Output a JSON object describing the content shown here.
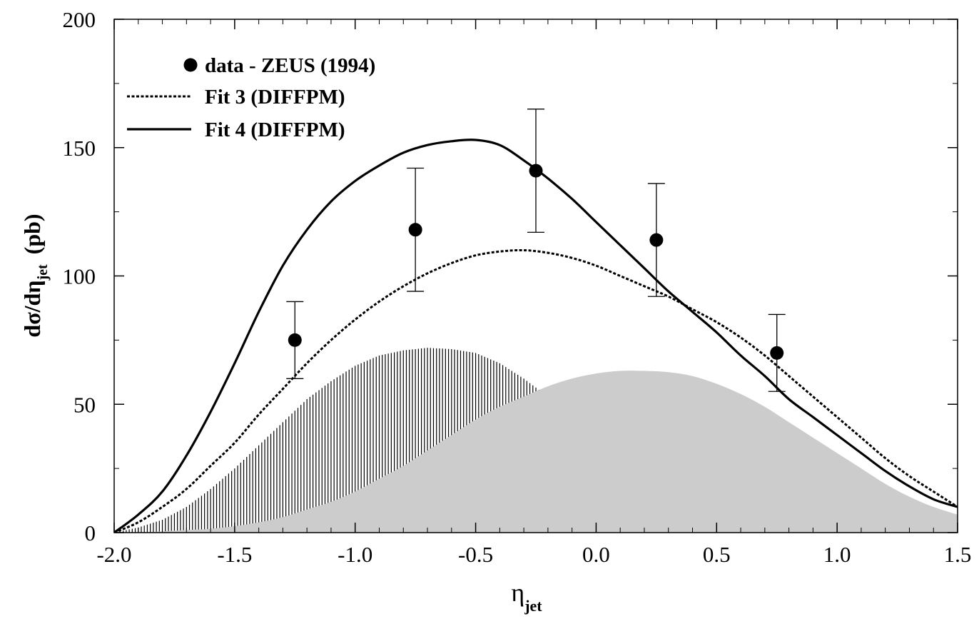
{
  "chart_data": {
    "type": "line",
    "title": "",
    "xlabel": {
      "main": "η",
      "sub": "jet"
    },
    "ylabel": {
      "main": "dσ/dη",
      "sub": "jet",
      "unit": "(pb)"
    },
    "xlim": [
      -2.0,
      1.5
    ],
    "ylim": [
      0,
      200
    ],
    "x_ticks": [
      -2.0,
      -1.5,
      -1.0,
      -0.5,
      0.0,
      0.5,
      1.0,
      1.5
    ],
    "x_tick_labels": [
      "-2.0",
      "-1.5",
      "-1.0",
      "-0.5",
      "0.0",
      "0.5",
      "1.0",
      "1.5"
    ],
    "y_ticks": [
      0,
      50,
      100,
      150,
      200
    ],
    "y_tick_labels": [
      "0",
      "50",
      "100",
      "150",
      "200"
    ],
    "grid": false,
    "legend_position": "top-left",
    "data_points": {
      "name": "data - ZEUS (1994)",
      "points": [
        {
          "x": -1.25,
          "y": 75,
          "err_low": 60,
          "err_high": 90
        },
        {
          "x": -0.75,
          "y": 118,
          "err_low": 94,
          "err_high": 142
        },
        {
          "x": -0.25,
          "y": 141,
          "err_low": 117,
          "err_high": 165
        },
        {
          "x": 0.25,
          "y": 114,
          "err_low": 92,
          "err_high": 136
        },
        {
          "x": 0.75,
          "y": 70,
          "err_low": 55,
          "err_high": 85
        }
      ]
    },
    "series": [
      {
        "name": "Fit 3 (DIFFPM)",
        "style": "dotted",
        "x": [
          -2.0,
          -1.9,
          -1.8,
          -1.7,
          -1.6,
          -1.5,
          -1.4,
          -1.3,
          -1.2,
          -1.1,
          -1.0,
          -0.9,
          -0.8,
          -0.7,
          -0.6,
          -0.5,
          -0.4,
          -0.3,
          -0.2,
          -0.1,
          0.0,
          0.1,
          0.2,
          0.3,
          0.4,
          0.5,
          0.6,
          0.7,
          0.8,
          0.9,
          1.0,
          1.1,
          1.2,
          1.3,
          1.4,
          1.5
        ],
        "y": [
          0,
          4,
          10,
          17,
          26,
          35,
          46,
          56,
          66,
          75,
          83,
          90,
          96,
          101,
          105,
          108,
          109.5,
          110,
          109,
          107,
          104,
          100,
          96,
          92,
          87,
          82,
          76,
          69,
          61,
          53,
          45,
          37,
          29,
          22,
          16,
          10
        ]
      },
      {
        "name": "Fit 4 (DIFFPM)",
        "style": "solid",
        "x": [
          -2.0,
          -1.9,
          -1.8,
          -1.7,
          -1.6,
          -1.5,
          -1.4,
          -1.3,
          -1.2,
          -1.1,
          -1.0,
          -0.9,
          -0.8,
          -0.7,
          -0.6,
          -0.5,
          -0.4,
          -0.3,
          -0.2,
          -0.1,
          0.0,
          0.1,
          0.2,
          0.3,
          0.4,
          0.5,
          0.6,
          0.7,
          0.8,
          0.9,
          1.0,
          1.1,
          1.2,
          1.3,
          1.4,
          1.5
        ],
        "y": [
          0,
          7,
          16,
          30,
          47,
          66,
          86,
          104,
          118,
          129,
          137,
          143,
          148,
          151,
          152.5,
          153,
          151,
          145,
          138,
          130,
          121,
          112,
          103,
          94,
          86,
          78,
          69,
          61,
          52,
          45,
          38,
          31,
          24,
          18,
          13,
          10
        ]
      },
      {
        "name": "",
        "style": "hatched-area",
        "x": [
          -2.0,
          -1.9,
          -1.8,
          -1.7,
          -1.6,
          -1.5,
          -1.4,
          -1.3,
          -1.2,
          -1.1,
          -1.0,
          -0.9,
          -0.8,
          -0.7,
          -0.6,
          -0.5,
          -0.4,
          -0.3,
          -0.2,
          -0.1,
          0.0,
          0.1,
          0.2,
          0.3
        ],
        "y": [
          0,
          2,
          5,
          10,
          17,
          25,
          34,
          43,
          52,
          59,
          65,
          69,
          71,
          72,
          71.5,
          70,
          66,
          60,
          53,
          44,
          35,
          26,
          18,
          11
        ]
      },
      {
        "name": "",
        "style": "grey-area",
        "x": [
          -2.0,
          -1.9,
          -1.8,
          -1.7,
          -1.6,
          -1.5,
          -1.4,
          -1.3,
          -1.2,
          -1.1,
          -1.0,
          -0.9,
          -0.8,
          -0.7,
          -0.6,
          -0.5,
          -0.4,
          -0.3,
          -0.2,
          -0.1,
          0.0,
          0.1,
          0.2,
          0.3,
          0.4,
          0.5,
          0.6,
          0.7,
          0.8,
          0.9,
          1.0,
          1.1,
          1.2,
          1.3,
          1.4,
          1.5
        ],
        "y": [
          0,
          0,
          0.5,
          1,
          1.5,
          2.5,
          4,
          6,
          9,
          12,
          16,
          21,
          26,
          32,
          38,
          44,
          49,
          53,
          57,
          60,
          62,
          63,
          63,
          62.5,
          61,
          58,
          54,
          49,
          43,
          37,
          31,
          25,
          19,
          14,
          10,
          7
        ]
      }
    ],
    "colors": {
      "line": "#000000",
      "grey_fill": "#cccccc",
      "hatch": "#000000"
    }
  }
}
